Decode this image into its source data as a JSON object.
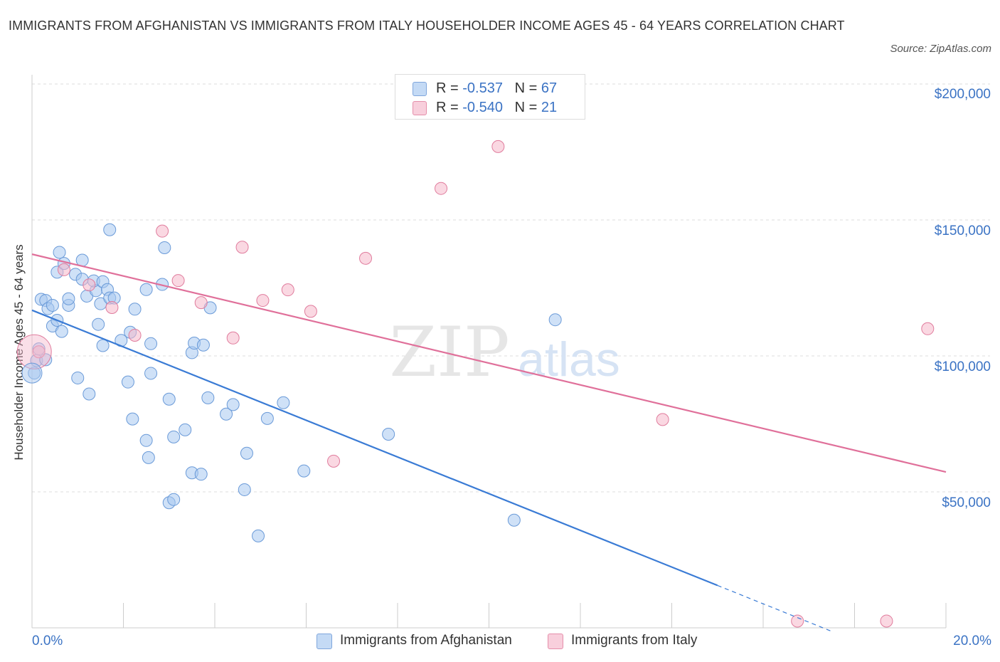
{
  "title": "IMMIGRANTS FROM AFGHANISTAN VS IMMIGRANTS FROM ITALY HOUSEHOLDER INCOME AGES 45 - 64 YEARS CORRELATION CHART",
  "source": "Source: ZipAtlas.com",
  "watermark": {
    "zip": "ZIP",
    "atlas": "atlas"
  },
  "legend_box": {
    "rows": [
      {
        "r_label": "R =",
        "r_value": "-0.537",
        "n_label": "N =",
        "n_value": "67",
        "color": "#a8c8f0"
      },
      {
        "r_label": "R =",
        "r_value": "-0.540",
        "n_label": "N =",
        "n_value": "21",
        "color": "#f5b8cb"
      }
    ]
  },
  "chart_data": {
    "type": "scatter",
    "title": "IMMIGRANTS FROM AFGHANISTAN VS IMMIGRANTS FROM ITALY HOUSEHOLDER INCOME AGES 45 - 64 YEARS CORRELATION CHART",
    "xlabel": "",
    "ylabel": "Householder Income Ages 45 - 64 years",
    "xlim": [
      0,
      20
    ],
    "ylim": [
      0,
      200000
    ],
    "x_tick_labels": [
      "0.0%",
      "20.0%"
    ],
    "y_ticks": [
      {
        "value": 200000,
        "label": "$200,000"
      },
      {
        "value": 150000,
        "label": "$150,000"
      },
      {
        "value": 100000,
        "label": "$100,000"
      },
      {
        "value": 50000,
        "label": "$50,000"
      }
    ],
    "grid": "horizontal dashed",
    "legend_position": "bottom-center",
    "series": [
      {
        "name": "Immigrants from Afghanistan",
        "color": "#a8c8f0",
        "stroke": "#6a9ad8",
        "line_color": "#3a7bd5",
        "trend": {
          "x0": 0,
          "y0": 116800,
          "x1": 15,
          "y1": 15600,
          "dash_to_x": 17.5,
          "dash_to_y": -1300
        },
        "points": [
          [
            0.1,
            98300
          ],
          [
            0.05,
            93700
          ],
          [
            0.15,
            102600
          ],
          [
            0.3,
            98600
          ],
          [
            0.2,
            120800
          ],
          [
            0.3,
            120400
          ],
          [
            0.35,
            117400
          ],
          [
            0.45,
            118600
          ],
          [
            0.45,
            111000
          ],
          [
            0.55,
            113100
          ],
          [
            0.65,
            109000
          ],
          [
            0.55,
            130800
          ],
          [
            0.6,
            138100
          ],
          [
            0.7,
            134000
          ],
          [
            0.8,
            118600
          ],
          [
            0.8,
            121000
          ],
          [
            1.0,
            91900
          ],
          [
            1.1,
            135200
          ],
          [
            0.95,
            130000
          ],
          [
            1.1,
            128200
          ],
          [
            1.2,
            122000
          ],
          [
            1.4,
            124000
          ],
          [
            1.35,
            127600
          ],
          [
            1.5,
            119200
          ],
          [
            1.55,
            127300
          ],
          [
            1.65,
            124400
          ],
          [
            1.7,
            121300
          ],
          [
            1.8,
            121300
          ],
          [
            1.7,
            146400
          ],
          [
            1.45,
            111600
          ],
          [
            1.55,
            103800
          ],
          [
            1.25,
            86000
          ],
          [
            2.15,
            108700
          ],
          [
            1.95,
            105700
          ],
          [
            2.25,
            117200
          ],
          [
            2.5,
            124400
          ],
          [
            2.6,
            104500
          ],
          [
            2.6,
            93600
          ],
          [
            2.1,
            90400
          ],
          [
            2.2,
            76800
          ],
          [
            2.5,
            68900
          ],
          [
            2.55,
            62600
          ],
          [
            2.85,
            126300
          ],
          [
            2.9,
            139800
          ],
          [
            3.0,
            84100
          ],
          [
            3.1,
            70200
          ],
          [
            3.35,
            72800
          ],
          [
            3.5,
            57000
          ],
          [
            3.0,
            46000
          ],
          [
            3.1,
            47200
          ],
          [
            3.5,
            101200
          ],
          [
            3.55,
            104700
          ],
          [
            3.75,
            104000
          ],
          [
            3.7,
            56500
          ],
          [
            3.85,
            84600
          ],
          [
            3.9,
            117700
          ],
          [
            4.25,
            78600
          ],
          [
            4.4,
            82100
          ],
          [
            4.65,
            50800
          ],
          [
            4.7,
            64200
          ],
          [
            4.95,
            33800
          ],
          [
            5.15,
            77000
          ],
          [
            5.5,
            82800
          ],
          [
            5.95,
            57700
          ],
          [
            7.8,
            71200
          ],
          [
            10.55,
            39600
          ],
          [
            11.45,
            113300
          ]
        ]
      },
      {
        "name": "Immigrants from Italy",
        "color": "#f5b8cb",
        "stroke": "#e07c9d",
        "line_color": "#e0709a",
        "trend": {
          "x0": 0,
          "y0": 137400,
          "x1": 20,
          "y1": 57300
        },
        "points": [
          [
            0.15,
            101500
          ],
          [
            0.7,
            131700
          ],
          [
            1.25,
            126100
          ],
          [
            1.75,
            117800
          ],
          [
            2.25,
            107600
          ],
          [
            2.85,
            145900
          ],
          [
            3.2,
            127700
          ],
          [
            3.7,
            119600
          ],
          [
            4.4,
            106600
          ],
          [
            4.6,
            140000
          ],
          [
            5.05,
            120400
          ],
          [
            5.6,
            124300
          ],
          [
            6.1,
            116400
          ],
          [
            6.6,
            61300
          ],
          [
            7.3,
            135900
          ],
          [
            8.95,
            161600
          ],
          [
            10.2,
            177000
          ],
          [
            13.8,
            76600
          ],
          [
            16.75,
            2500
          ],
          [
            18.7,
            2500
          ],
          [
            19.6,
            110000
          ]
        ]
      }
    ]
  },
  "bottom_legend": [
    {
      "label": "Immigrants from Afghanistan",
      "color": "#c4daf5",
      "border": "#7fa6dc"
    },
    {
      "label": "Immigrants from Italy",
      "color": "#f8cfdc",
      "border": "#e58eaa"
    }
  ]
}
